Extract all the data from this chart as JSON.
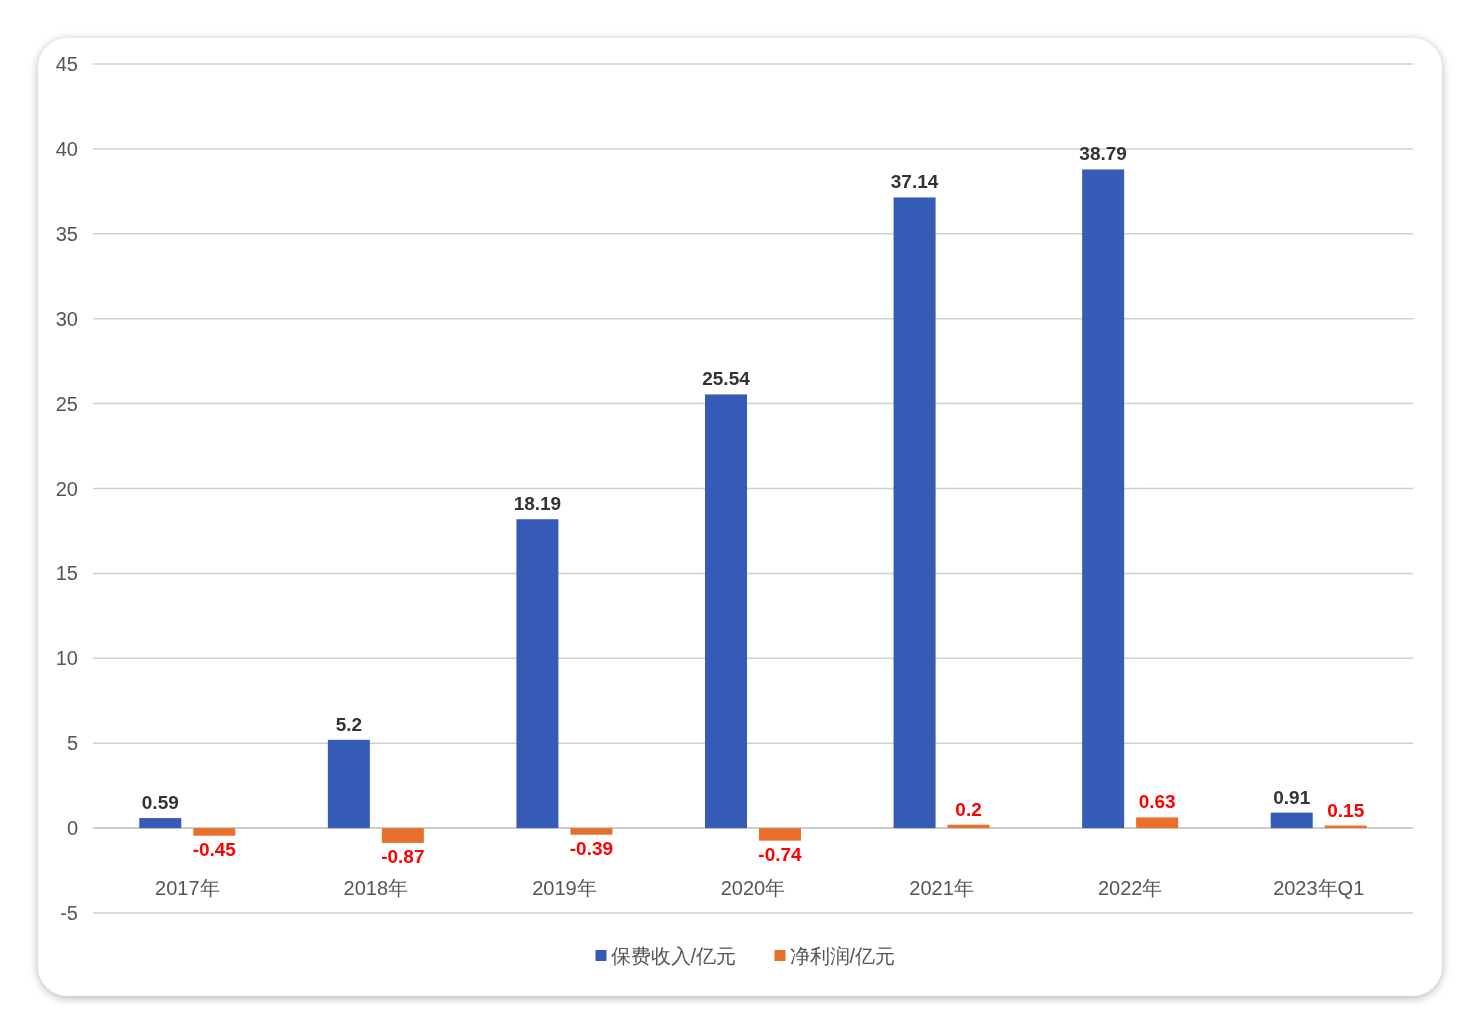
{
  "chart_data": {
    "type": "bar",
    "categories": [
      "2017年",
      "2018年",
      "2019年",
      "2020年",
      "2021年",
      "2022年",
      "2023年Q1"
    ],
    "series": [
      {
        "name": "保费收入/亿元",
        "color": "#355bb7",
        "values": [
          0.59,
          5.2,
          18.19,
          25.54,
          37.14,
          38.79,
          0.91
        ]
      },
      {
        "name": "净利润/亿元",
        "color": "#e8702a",
        "values": [
          -0.45,
          -0.87,
          -0.39,
          -0.74,
          0.2,
          0.63,
          0.15
        ]
      }
    ],
    "ylim": [
      -5,
      45
    ],
    "yticks": [
      -5,
      0,
      5,
      10,
      15,
      20,
      25,
      30,
      35,
      40,
      45
    ],
    "grid": "y",
    "legend": "bottom",
    "data_labels": true
  }
}
